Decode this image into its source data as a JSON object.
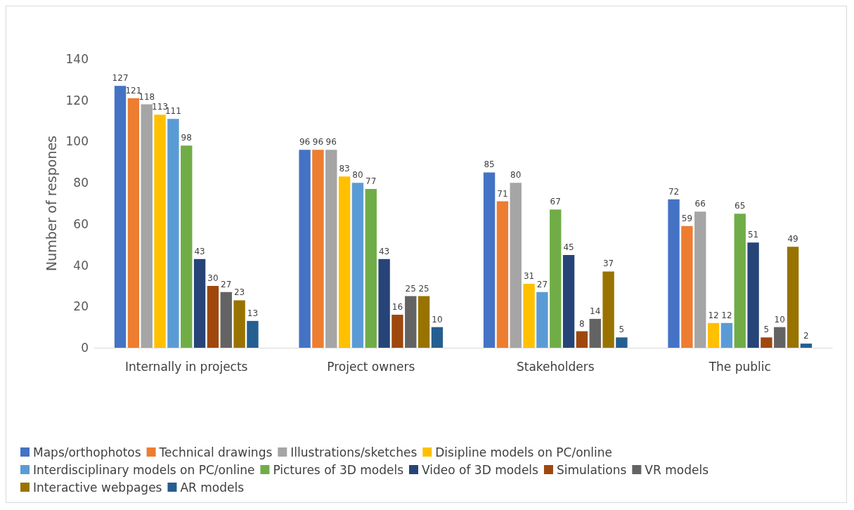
{
  "chart_data": {
    "type": "bar",
    "ylabel": "Number of respones",
    "categories": [
      "Internally in projects",
      "Project owners",
      "Stakeholders",
      "The public"
    ],
    "series": [
      {
        "name": "Maps/orthophotos",
        "color": "#4472c4",
        "values": [
          127,
          96,
          85,
          72
        ]
      },
      {
        "name": "Technical drawings",
        "color": "#ed7d31",
        "values": [
          121,
          96,
          71,
          59
        ]
      },
      {
        "name": "Illustrations/sketches",
        "color": "#a5a5a5",
        "values": [
          118,
          96,
          80,
          66
        ]
      },
      {
        "name": "Disipline models on PC/online",
        "color": "#ffc000",
        "values": [
          113,
          83,
          31,
          12
        ]
      },
      {
        "name": "Interdisciplinary models on PC/online",
        "color": "#5b9bd5",
        "values": [
          111,
          80,
          27,
          12
        ]
      },
      {
        "name": "Pictures of 3D models",
        "color": "#70ad47",
        "values": [
          98,
          77,
          67,
          65
        ]
      },
      {
        "name": "Video of 3D models",
        "color": "#264478",
        "values": [
          43,
          43,
          45,
          51
        ]
      },
      {
        "name": "Simulations",
        "color": "#9e480e",
        "values": [
          30,
          16,
          8,
          5
        ]
      },
      {
        "name": "VR models",
        "color": "#636363",
        "values": [
          27,
          25,
          14,
          10
        ]
      },
      {
        "name": "Interactive webpages",
        "color": "#997300",
        "values": [
          23,
          25,
          37,
          49
        ]
      },
      {
        "name": "AR models",
        "color": "#255e91",
        "values": [
          13,
          10,
          5,
          2
        ]
      }
    ],
    "ylim": [
      0,
      140
    ],
    "yticks": [
      0,
      20,
      40,
      60,
      80,
      100,
      120,
      140
    ],
    "grid": false,
    "legend": "bottom",
    "data_labels": true
  }
}
